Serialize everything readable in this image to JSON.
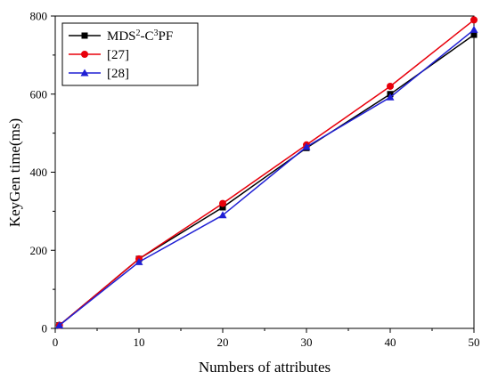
{
  "chart_data": {
    "type": "line",
    "xlabel": "Numbers of attributes",
    "ylabel": "KeyGen time(ms)",
    "xlim": [
      0,
      50
    ],
    "ylim": [
      0,
      800
    ],
    "xticks": [
      0,
      10,
      20,
      30,
      40,
      50
    ],
    "yticks": [
      0,
      200,
      400,
      600,
      800
    ],
    "grid": false,
    "legend_position": "top-left",
    "x": [
      0.5,
      10,
      20,
      30,
      40,
      50
    ],
    "series": [
      {
        "name": "MDS²-C³PF",
        "name_parts": {
          "base1": "MDS",
          "sup1": "2",
          "base2": "-C",
          "sup2": "3",
          "base3": "PF"
        },
        "values": [
          8,
          178,
          310,
          462,
          600,
          752
        ],
        "color": "#000000",
        "marker": "square"
      },
      {
        "name": "[27]",
        "values": [
          8,
          178,
          320,
          470,
          620,
          790
        ],
        "color": "#e8000b",
        "marker": "circle"
      },
      {
        "name": "[28]",
        "values": [
          8,
          170,
          290,
          465,
          592,
          765
        ],
        "color": "#1f1fd4",
        "marker": "triangle"
      }
    ]
  }
}
